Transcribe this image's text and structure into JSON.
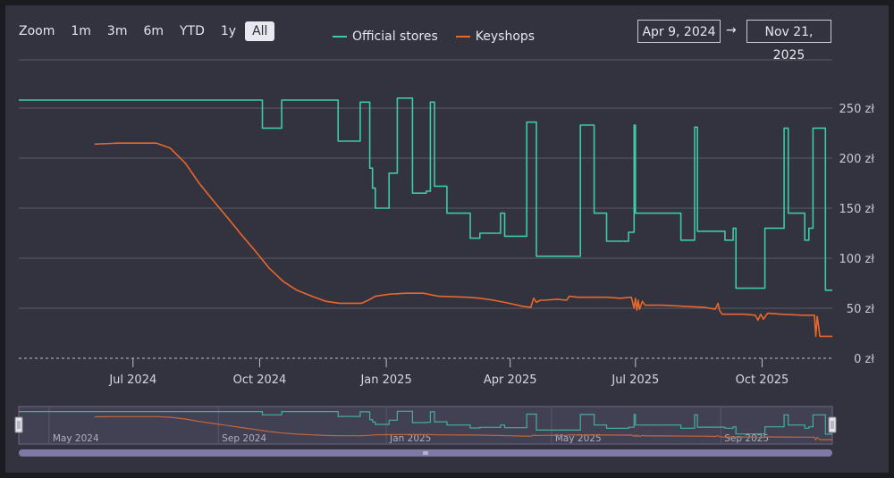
{
  "zoom": {
    "label": "Zoom",
    "buttons": [
      "1m",
      "3m",
      "6m",
      "YTD",
      "1y",
      "All"
    ],
    "active": "All"
  },
  "range": {
    "from": "Apr 9, 2024",
    "arrow": "→",
    "to": "Nov 21, 2025"
  },
  "colors": {
    "official": "#3ec9a7",
    "keyshops": "#e8672a",
    "background": "#33323f",
    "grid": "#5a5968",
    "text": "#e6e6ee",
    "navigator_mask": "#5a5a78"
  },
  "chart_data": {
    "type": "line",
    "y_unit": "zł",
    "ylim": [
      0,
      280
    ],
    "xlim": [
      "2024-04-09",
      "2025-11-21"
    ],
    "yticks": [
      0,
      50,
      100,
      150,
      200,
      250
    ],
    "ytick_labels": [
      "0 zł",
      "50 zł",
      "100 zł",
      "150 zł",
      "200 zł",
      "250 zł"
    ],
    "xticks": [
      "2024-07-01",
      "2024-10-01",
      "2025-01-01",
      "2025-04-01",
      "2025-07-01",
      "2025-10-01"
    ],
    "xtick_labels": [
      "Jul 2024",
      "Oct 2024",
      "Jan 2025",
      "Apr 2025",
      "Jul 2025",
      "Oct 2025"
    ],
    "grid": true,
    "legend_position": "top-center",
    "series": [
      {
        "name": "Official stores",
        "step": true,
        "points": [
          [
            "2024-04-09",
            258
          ],
          [
            "2024-10-03",
            258
          ],
          [
            "2024-10-03",
            230
          ],
          [
            "2024-10-17",
            230
          ],
          [
            "2024-10-17",
            258
          ],
          [
            "2024-11-27",
            258
          ],
          [
            "2024-11-27",
            217
          ],
          [
            "2024-12-13",
            217
          ],
          [
            "2024-12-13",
            256
          ],
          [
            "2024-12-20",
            256
          ],
          [
            "2024-12-20",
            190
          ],
          [
            "2024-12-22",
            190
          ],
          [
            "2024-12-22",
            170
          ],
          [
            "2024-12-24",
            170
          ],
          [
            "2024-12-24",
            150
          ],
          [
            "2025-01-03",
            150
          ],
          [
            "2025-01-03",
            185
          ],
          [
            "2025-01-09",
            185
          ],
          [
            "2025-01-09",
            260
          ],
          [
            "2025-01-20",
            260
          ],
          [
            "2025-01-20",
            165
          ],
          [
            "2025-01-30",
            165
          ],
          [
            "2025-01-30",
            167
          ],
          [
            "2025-02-02",
            167
          ],
          [
            "2025-02-02",
            256
          ],
          [
            "2025-02-05",
            256
          ],
          [
            "2025-02-05",
            172
          ],
          [
            "2025-02-14",
            172
          ],
          [
            "2025-02-14",
            145
          ],
          [
            "2025-03-03",
            145
          ],
          [
            "2025-03-03",
            120
          ],
          [
            "2025-03-10",
            120
          ],
          [
            "2025-03-10",
            125
          ],
          [
            "2025-03-25",
            125
          ],
          [
            "2025-03-25",
            145
          ],
          [
            "2025-03-28",
            145
          ],
          [
            "2025-03-28",
            122
          ],
          [
            "2025-04-13",
            122
          ],
          [
            "2025-04-13",
            236
          ],
          [
            "2025-04-20",
            236
          ],
          [
            "2025-04-20",
            102
          ],
          [
            "2025-05-22",
            102
          ],
          [
            "2025-05-22",
            233
          ],
          [
            "2025-06-01",
            233
          ],
          [
            "2025-06-01",
            145
          ],
          [
            "2025-06-10",
            145
          ],
          [
            "2025-06-10",
            117
          ],
          [
            "2025-06-26",
            117
          ],
          [
            "2025-06-26",
            126
          ],
          [
            "2025-06-30",
            126
          ],
          [
            "2025-06-30",
            233
          ],
          [
            "2025-07-01",
            233
          ],
          [
            "2025-07-01",
            145
          ],
          [
            "2025-08-03",
            145
          ],
          [
            "2025-08-03",
            118
          ],
          [
            "2025-08-13",
            118
          ],
          [
            "2025-08-13",
            231
          ],
          [
            "2025-08-15",
            231
          ],
          [
            "2025-08-15",
            127
          ],
          [
            "2025-09-04",
            127
          ],
          [
            "2025-09-04",
            118
          ],
          [
            "2025-09-10",
            118
          ],
          [
            "2025-09-10",
            130
          ],
          [
            "2025-09-12",
            130
          ],
          [
            "2025-09-12",
            70
          ],
          [
            "2025-10-03",
            70
          ],
          [
            "2025-10-03",
            130
          ],
          [
            "2025-10-17",
            130
          ],
          [
            "2025-10-17",
            230
          ],
          [
            "2025-10-20",
            230
          ],
          [
            "2025-10-20",
            145
          ],
          [
            "2025-11-01",
            145
          ],
          [
            "2025-11-01",
            118
          ],
          [
            "2025-11-04",
            118
          ],
          [
            "2025-11-04",
            130
          ],
          [
            "2025-11-07",
            130
          ],
          [
            "2025-11-07",
            230
          ],
          [
            "2025-11-16",
            230
          ],
          [
            "2025-11-16",
            68
          ],
          [
            "2025-11-21",
            68
          ]
        ]
      },
      {
        "name": "Keyshops",
        "step": false,
        "points": [
          [
            "2024-06-03",
            214
          ],
          [
            "2024-06-20",
            215
          ],
          [
            "2024-07-18",
            215
          ],
          [
            "2024-07-28",
            210
          ],
          [
            "2024-08-08",
            195
          ],
          [
            "2024-08-18",
            175
          ],
          [
            "2024-08-28",
            158
          ],
          [
            "2024-09-08",
            140
          ],
          [
            "2024-09-18",
            123
          ],
          [
            "2024-09-28",
            107
          ],
          [
            "2024-10-08",
            90
          ],
          [
            "2024-10-18",
            77
          ],
          [
            "2024-10-28",
            68
          ],
          [
            "2024-11-08",
            62
          ],
          [
            "2024-11-18",
            57
          ],
          [
            "2024-11-28",
            55
          ],
          [
            "2024-12-08",
            55
          ],
          [
            "2024-12-14",
            55
          ],
          [
            "2024-12-19",
            58
          ],
          [
            "2024-12-24",
            62
          ],
          [
            "2025-01-03",
            64
          ],
          [
            "2025-01-15",
            65
          ],
          [
            "2025-01-28",
            65
          ],
          [
            "2025-02-08",
            62
          ],
          [
            "2025-03-01",
            61
          ],
          [
            "2025-03-10",
            60
          ],
          [
            "2025-03-20",
            58
          ],
          [
            "2025-03-31",
            55
          ],
          [
            "2025-04-10",
            52
          ],
          [
            "2025-04-16",
            51
          ],
          [
            "2025-04-18",
            60
          ],
          [
            "2025-04-20",
            56
          ],
          [
            "2025-04-23",
            58
          ],
          [
            "2025-04-26",
            58
          ],
          [
            "2025-05-05",
            59
          ],
          [
            "2025-05-12",
            58
          ],
          [
            "2025-05-14",
            62
          ],
          [
            "2025-05-20",
            61
          ],
          [
            "2025-06-10",
            61
          ],
          [
            "2025-06-20",
            60
          ],
          [
            "2025-06-28",
            61
          ],
          [
            "2025-06-30",
            50
          ],
          [
            "2025-07-01",
            60
          ],
          [
            "2025-07-02",
            48
          ],
          [
            "2025-07-03",
            58
          ],
          [
            "2025-07-04",
            49
          ],
          [
            "2025-07-06",
            57
          ],
          [
            "2025-07-08",
            53
          ],
          [
            "2025-07-20",
            53
          ],
          [
            "2025-08-20",
            51
          ],
          [
            "2025-08-28",
            49
          ],
          [
            "2025-08-30",
            55
          ],
          [
            "2025-08-31",
            48
          ],
          [
            "2025-09-02",
            44
          ],
          [
            "2025-09-18",
            44
          ],
          [
            "2025-09-26",
            43
          ],
          [
            "2025-09-28",
            38
          ],
          [
            "2025-09-30",
            44
          ],
          [
            "2025-10-02",
            39
          ],
          [
            "2025-10-05",
            45
          ],
          [
            "2025-10-15",
            44
          ],
          [
            "2025-10-30",
            43
          ],
          [
            "2025-11-08",
            43
          ],
          [
            "2025-11-09",
            22
          ],
          [
            "2025-11-10",
            42
          ],
          [
            "2025-11-12",
            22
          ],
          [
            "2025-11-21",
            22
          ]
        ]
      }
    ],
    "navigator": {
      "xtick_labels": [
        "May 2024",
        "Sep 2024",
        "Jan 2025",
        "May 2025",
        "Sep 2025"
      ],
      "xticks": [
        "2024-05-01",
        "2024-09-01",
        "2025-01-01",
        "2025-05-01",
        "2025-09-01"
      ]
    }
  }
}
